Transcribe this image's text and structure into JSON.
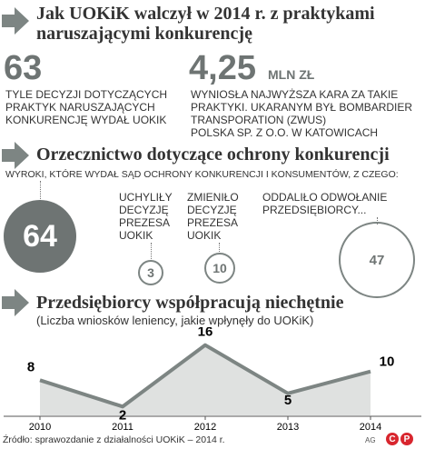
{
  "section1": {
    "title_line1": "Jak UOKiK walczył w 2014 r. z praktykami",
    "title_line2": "naruszającymi konkurencję",
    "stat1": {
      "value": "63",
      "desc_line1": "TYLE DECYZJI DOTYCZĄCYCH",
      "desc_line2": "PRAKTYK NARUSZAJĄCYCH",
      "desc_line3": "KONKURENCJĘ WYDAŁ UOKIK"
    },
    "stat2": {
      "value": "4,25",
      "unit": "MLN ZŁ",
      "desc_line1": "WYNIOSŁA NAJWYŻSZA KARA ZA TAKIE",
      "desc_line2": "PRAKTYKI. UKARANYM BYŁ BOMBARDIER",
      "desc_line3": "TRANSPORATION (ZWUS)",
      "desc_line4": "POLSKA SP. Z O.O. W KATOWICACH"
    }
  },
  "section2": {
    "title": "Orzecznictwo dotyczące ochrony konkurencji",
    "subtitle": "WYROKI, KTÓRE WYDAŁ SĄD OCHRONY KONKURENCJI I KONSUMENTÓW, Z CZEGO:",
    "total": "64",
    "items": [
      {
        "lines": [
          "UCHYLIŁY",
          "DECYZJĘ",
          "PREZESA",
          "UOKIK"
        ],
        "value": "3"
      },
      {
        "lines": [
          "ZMIENIŁO",
          "DECYZJĘ",
          "PREZESA",
          "UOKIK"
        ],
        "value": "10"
      },
      {
        "lines": [
          "ODDALIŁO ODWOŁANIE",
          "PRZEDSIĘBIORCY..."
        ],
        "value": "47"
      }
    ]
  },
  "section3": {
    "title": "Przedsiębiorcy współpracują niechętnie",
    "subtitle": "(Liczba wniosków leniency, jakie wpłynęły do UOKiK)"
  },
  "chart_data": {
    "type": "area",
    "categories": [
      "2010",
      "2011",
      "2012",
      "2013",
      "2014"
    ],
    "values": [
      8,
      2,
      16,
      5,
      10
    ],
    "title": "Przedsiębiorcy współpracują niechętnie",
    "subtitle": "(Liczba wniosków leniency, jakie wpłynęły do UOKiK)",
    "data_labels": true,
    "grid": false,
    "ylim": [
      0,
      18
    ],
    "colors": {
      "line": "#7d8583",
      "fill": "#dfe1e0"
    }
  },
  "footer": {
    "source": "Źródło: sprawozdanie z działalności UOKiK – 2014 r.",
    "author": "AG",
    "logo_letters": [
      "C",
      "P"
    ]
  },
  "colors": {
    "accent_gray": "#6e7473",
    "arrow": "#7d8583",
    "logo_red": "#d8262e"
  },
  "icons": [
    "arrow-right-icon",
    "circle-c-logo",
    "circle-p-logo"
  ]
}
